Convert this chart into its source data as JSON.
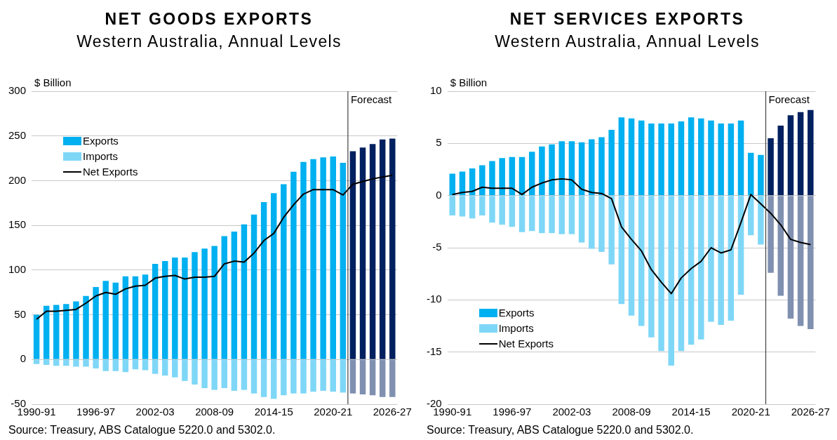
{
  "chart_data": [
    {
      "type": "bar",
      "title": "NET GOODS EXPORTS",
      "subtitle": "Western Australia, Annual Levels",
      "ylabel": "$ Billion",
      "categories": [
        "1990-91",
        null,
        null,
        null,
        null,
        null,
        "1996-97",
        null,
        null,
        null,
        null,
        null,
        "2002-03",
        null,
        null,
        null,
        null,
        null,
        "2008-09",
        null,
        null,
        null,
        null,
        null,
        "2014-15",
        null,
        null,
        null,
        null,
        null,
        "2020-21",
        null,
        null,
        null,
        null,
        null,
        "2026-27"
      ],
      "stacked": true,
      "ylim": [
        -50,
        300
      ],
      "yticks": [
        -50,
        0,
        50,
        100,
        150,
        200,
        250,
        300
      ],
      "grid": "y",
      "legend": "top left",
      "series": [
        {
          "name": "Exports",
          "type": "bar",
          "colors": [
            "#00b0f0",
            "#00b0f0",
            "#00b0f0",
            "#00b0f0",
            "#00b0f0",
            "#00b0f0",
            "#00b0f0",
            "#00b0f0",
            "#00b0f0",
            "#00b0f0",
            "#00b0f0",
            "#00b0f0",
            "#00b0f0",
            "#00b0f0",
            "#00b0f0",
            "#00b0f0",
            "#00b0f0",
            "#00b0f0",
            "#00b0f0",
            "#00b0f0",
            "#00b0f0",
            "#00b0f0",
            "#00b0f0",
            "#00b0f0",
            "#00b0f0",
            "#00b0f0",
            "#00b0f0",
            "#00b0f0",
            "#00b0f0",
            "#00b0f0",
            "#00b0f0",
            "#00b0f0",
            "#002060",
            "#002060",
            "#002060",
            "#002060",
            "#002060"
          ],
          "values": [
            50,
            60,
            61,
            62,
            65,
            71,
            81,
            88,
            86,
            93,
            93,
            95,
            107,
            110,
            114,
            114,
            120,
            124,
            127,
            138,
            143,
            151,
            162,
            176,
            186,
            196,
            210,
            221,
            224,
            226,
            227,
            220,
            233,
            237,
            241,
            246,
            247
          ]
        },
        {
          "name": "Imports",
          "type": "bar",
          "colors": [
            "#7fd7f7",
            "#7fd7f7",
            "#7fd7f7",
            "#7fd7f7",
            "#7fd7f7",
            "#7fd7f7",
            "#7fd7f7",
            "#7fd7f7",
            "#7fd7f7",
            "#7fd7f7",
            "#7fd7f7",
            "#7fd7f7",
            "#7fd7f7",
            "#7fd7f7",
            "#7fd7f7",
            "#7fd7f7",
            "#7fd7f7",
            "#7fd7f7",
            "#7fd7f7",
            "#7fd7f7",
            "#7fd7f7",
            "#7fd7f7",
            "#7fd7f7",
            "#7fd7f7",
            "#7fd7f7",
            "#7fd7f7",
            "#7fd7f7",
            "#7fd7f7",
            "#7fd7f7",
            "#7fd7f7",
            "#7fd7f7",
            "#7fd7f7",
            "#8090b0",
            "#8090b0",
            "#8090b0",
            "#8090b0",
            "#8090b0"
          ],
          "values": [
            -5,
            -6,
            -7,
            -7,
            -8,
            -8,
            -10,
            -13,
            -13,
            -14,
            -11,
            -12,
            -16,
            -18,
            -20,
            -24,
            -28,
            -32,
            -34,
            -32,
            -35,
            -34,
            -38,
            -42,
            -44,
            -40,
            -38,
            -38,
            -36,
            -35,
            -36,
            -37,
            -38,
            -39,
            -40,
            -42,
            -42
          ]
        },
        {
          "name": "Net Exports",
          "type": "line",
          "color": "#000000",
          "values": [
            45,
            54,
            54,
            55,
            56,
            63,
            71,
            75,
            73,
            79,
            82,
            83,
            91,
            93,
            94,
            90,
            92,
            92,
            93,
            107,
            110,
            109,
            119,
            133,
            141,
            159,
            173,
            185,
            190,
            190,
            190,
            184,
            196,
            199,
            202,
            204,
            206
          ]
        }
      ],
      "annotations": [
        "Forecast",
        "Source: Treasury, ABS Catalogue 5220.0 and 5302.0."
      ]
    },
    {
      "type": "bar",
      "title": "NET SERVICES EXPORTS",
      "subtitle": "Western Australia, Annual Levels",
      "ylabel": "$ Billion",
      "categories": [
        "1990-91",
        null,
        null,
        null,
        null,
        null,
        "1996-97",
        null,
        null,
        null,
        null,
        null,
        "2002-03",
        null,
        null,
        null,
        null,
        null,
        "2008-09",
        null,
        null,
        null,
        null,
        null,
        "2014-15",
        null,
        null,
        null,
        null,
        null,
        "2020-21",
        null,
        null,
        null,
        null,
        null,
        "2026-27"
      ],
      "stacked": true,
      "ylim": [
        -20,
        10
      ],
      "yticks": [
        -20,
        -15,
        -10,
        -5,
        0,
        5,
        10
      ],
      "grid": "y",
      "legend": "bottom left",
      "series": [
        {
          "name": "Exports",
          "type": "bar",
          "colors": [
            "#00b0f0",
            "#00b0f0",
            "#00b0f0",
            "#00b0f0",
            "#00b0f0",
            "#00b0f0",
            "#00b0f0",
            "#00b0f0",
            "#00b0f0",
            "#00b0f0",
            "#00b0f0",
            "#00b0f0",
            "#00b0f0",
            "#00b0f0",
            "#00b0f0",
            "#00b0f0",
            "#00b0f0",
            "#00b0f0",
            "#00b0f0",
            "#00b0f0",
            "#00b0f0",
            "#00b0f0",
            "#00b0f0",
            "#00b0f0",
            "#00b0f0",
            "#00b0f0",
            "#00b0f0",
            "#00b0f0",
            "#00b0f0",
            "#00b0f0",
            "#00b0f0",
            "#00b0f0",
            "#002060",
            "#002060",
            "#002060",
            "#002060",
            "#002060"
          ],
          "values": [
            2.1,
            2.3,
            2.6,
            2.9,
            3.3,
            3.6,
            3.7,
            3.7,
            4.2,
            4.7,
            4.9,
            5.2,
            5.2,
            5.1,
            5.4,
            5.6,
            6.3,
            7.5,
            7.4,
            7.2,
            6.9,
            6.9,
            6.9,
            7.1,
            7.5,
            7.4,
            7.2,
            6.9,
            6.9,
            7.2,
            4.1,
            3.9,
            5.5,
            6.7,
            7.7,
            8.0,
            8.2
          ]
        },
        {
          "name": "Imports",
          "type": "bar",
          "colors": [
            "#7fd7f7",
            "#7fd7f7",
            "#7fd7f7",
            "#7fd7f7",
            "#7fd7f7",
            "#7fd7f7",
            "#7fd7f7",
            "#7fd7f7",
            "#7fd7f7",
            "#7fd7f7",
            "#7fd7f7",
            "#7fd7f7",
            "#7fd7f7",
            "#7fd7f7",
            "#7fd7f7",
            "#7fd7f7",
            "#7fd7f7",
            "#7fd7f7",
            "#7fd7f7",
            "#7fd7f7",
            "#7fd7f7",
            "#7fd7f7",
            "#7fd7f7",
            "#7fd7f7",
            "#7fd7f7",
            "#7fd7f7",
            "#7fd7f7",
            "#7fd7f7",
            "#7fd7f7",
            "#7fd7f7",
            "#7fd7f7",
            "#7fd7f7",
            "#8090b0",
            "#8090b0",
            "#8090b0",
            "#8090b0",
            "#8090b0"
          ],
          "values": [
            -1.9,
            -2.0,
            -2.2,
            -1.9,
            -2.6,
            -2.8,
            -3.0,
            -3.5,
            -3.4,
            -3.6,
            -3.6,
            -3.7,
            -3.7,
            -4.5,
            -5.1,
            -5.4,
            -6.6,
            -10.4,
            -11.5,
            -12.5,
            -13.6,
            -14.9,
            -16.3,
            -14.9,
            -14.3,
            -13.8,
            -12.1,
            -12.4,
            -12.0,
            -9.5,
            -3.8,
            -4.7,
            -7.4,
            -9.6,
            -11.8,
            -12.5,
            -12.8
          ]
        },
        {
          "name": "Net Exports",
          "type": "line",
          "color": "#000000",
          "values": [
            0.1,
            0.3,
            0.4,
            0.8,
            0.7,
            0.7,
            0.7,
            0.1,
            0.8,
            1.2,
            1.5,
            1.6,
            1.5,
            0.6,
            0.3,
            0.2,
            -0.3,
            -3.0,
            -4.2,
            -5.3,
            -7.1,
            -8.3,
            -9.4,
            -7.9,
            -7.0,
            -6.3,
            -5.0,
            -5.5,
            -5.2,
            -2.6,
            0.1,
            -0.8,
            -1.7,
            -2.8,
            -4.2,
            -4.5,
            -4.7
          ]
        }
      ],
      "annotations": [
        "Forecast",
        "Source: Treasury, ABS Catalogue 5220.0 and 5302.0."
      ]
    }
  ]
}
